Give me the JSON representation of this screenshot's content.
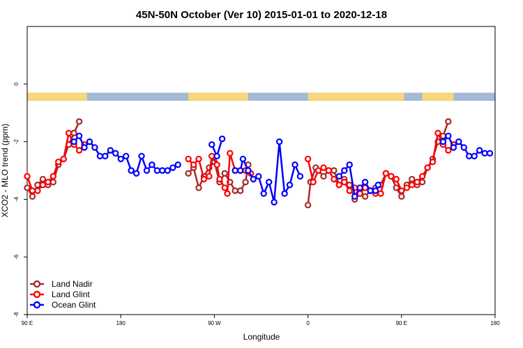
{
  "chart_data": {
    "type": "line",
    "title": "45N-50N October (Ver 10)   2015-01-01 to 2020-12-18",
    "xlabel": "Longitude",
    "ylabel": "XCO2 - MLO trend (ppm)",
    "xlim": [
      -90,
      270
    ],
    "ylim": [
      -8,
      2
    ],
    "x_ticks": [
      {
        "value": -90,
        "label": "90 E"
      },
      {
        "value": -18,
        "label": "180"
      },
      {
        "value": 54,
        "label": "90 W"
      },
      {
        "value": 126,
        "label": "0"
      },
      {
        "value": 198,
        "label": "90 E"
      },
      {
        "value": 270,
        "label": "180"
      }
    ],
    "y_ticks": [
      {
        "value": 0,
        "label": "0"
      },
      {
        "value": -2,
        "label": "-2"
      },
      {
        "value": -4,
        "label": "-4"
      },
      {
        "value": -6,
        "label": "-6"
      },
      {
        "value": -8,
        "label": "-8"
      }
    ],
    "grid": false,
    "legend_position": "bottom-left",
    "land_mask_band": {
      "y_top": -0.3,
      "y_bottom": -0.58,
      "land_color": "#f7d77a",
      "ocean_color": "#a4b8d8"
    },
    "series": [
      {
        "name": "Land Nadir",
        "color": "#a52a2a",
        "segments": [
          [
            [
              -90,
              -3.6
            ],
            [
              -86,
              -3.9
            ],
            [
              -82,
              -3.5
            ],
            [
              -78,
              -3.3
            ],
            [
              -74,
              -3.5
            ],
            [
              -70,
              -3.4
            ],
            [
              -66,
              -2.8
            ],
            [
              -62,
              -2.6
            ],
            [
              -58,
              -2.1
            ],
            [
              -54,
              -1.7
            ],
            [
              -50,
              -1.3
            ]
          ],
          [
            [
              34,
              -3.1
            ],
            [
              38,
              -2.9
            ],
            [
              42,
              -3.6
            ],
            [
              46,
              -3.2
            ],
            [
              50,
              -2.9
            ],
            [
              54,
              -2.7
            ],
            [
              58,
              -3.4
            ],
            [
              62,
              -3.1
            ],
            [
              66,
              -3.4
            ],
            [
              70,
              -3.7
            ],
            [
              74,
              -3.7
            ],
            [
              78,
              -3.4
            ],
            [
              80,
              -2.8
            ]
          ],
          [
            [
              126,
              -4.2
            ],
            [
              128,
              -3.4
            ],
            [
              132,
              -2.9
            ],
            [
              138,
              -3.2
            ],
            [
              142,
              -3.0
            ],
            [
              146,
              -3.0
            ],
            [
              150,
              -3.5
            ],
            [
              154,
              -3.3
            ],
            [
              158,
              -3.5
            ],
            [
              162,
              -4.0
            ],
            [
              166,
              -3.8
            ],
            [
              170,
              -3.9
            ],
            [
              174,
              -3.7
            ],
            [
              178,
              -3.6
            ],
            [
              182,
              -3.5
            ],
            [
              186,
              -3.1
            ],
            [
              190,
              -3.2
            ],
            [
              194,
              -3.6
            ],
            [
              198,
              -3.9
            ],
            [
              202,
              -3.5
            ],
            [
              206,
              -3.3
            ],
            [
              210,
              -3.5
            ],
            [
              214,
              -3.4
            ],
            [
              218,
              -2.9
            ],
            [
              222,
              -2.6
            ],
            [
              226,
              -2.0
            ],
            [
              230,
              -1.8
            ],
            [
              234,
              -1.3
            ]
          ]
        ]
      },
      {
        "name": "Land Glint",
        "color": "#ff0000",
        "segments": [
          [
            [
              -90,
              -3.2
            ],
            [
              -86,
              -3.7
            ],
            [
              -82,
              -3.7
            ],
            [
              -78,
              -3.5
            ],
            [
              -74,
              -3.4
            ],
            [
              -70,
              -3.2
            ],
            [
              -66,
              -2.7
            ],
            [
              -62,
              -2.6
            ],
            [
              -58,
              -1.7
            ],
            [
              -54,
              -2.1
            ],
            [
              -50,
              -2.3
            ],
            [
              -46,
              -2.1
            ]
          ],
          [
            [
              34,
              -2.6
            ],
            [
              38,
              -2.8
            ],
            [
              42,
              -2.6
            ],
            [
              46,
              -3.3
            ],
            [
              50,
              -3.2
            ],
            [
              52,
              -2.5
            ],
            [
              56,
              -2.8
            ],
            [
              58,
              -3.3
            ],
            [
              62,
              -3.6
            ],
            [
              64,
              -3.8
            ],
            [
              66,
              -2.4
            ],
            [
              70,
              -3.0
            ],
            [
              74,
              -3.0
            ],
            [
              78,
              -3.0
            ],
            [
              82,
              -3.1
            ]
          ],
          [
            [
              126,
              -2.6
            ],
            [
              130,
              -3.4
            ],
            [
              134,
              -3.0
            ],
            [
              138,
              -2.9
            ],
            [
              142,
              -3.0
            ],
            [
              146,
              -3.3
            ],
            [
              150,
              -3.5
            ],
            [
              154,
              -3.4
            ],
            [
              158,
              -3.7
            ],
            [
              162,
              -3.6
            ],
            [
              166,
              -3.8
            ],
            [
              170,
              -3.6
            ],
            [
              174,
              -3.7
            ],
            [
              178,
              -3.8
            ],
            [
              182,
              -3.8
            ],
            [
              186,
              -3.1
            ],
            [
              190,
              -3.2
            ],
            [
              194,
              -3.3
            ],
            [
              198,
              -3.7
            ],
            [
              202,
              -3.6
            ],
            [
              206,
              -3.5
            ],
            [
              210,
              -3.4
            ],
            [
              214,
              -3.2
            ],
            [
              218,
              -2.9
            ],
            [
              222,
              -2.7
            ],
            [
              226,
              -1.7
            ],
            [
              230,
              -2.1
            ],
            [
              234,
              -2.3
            ],
            [
              238,
              -2.1
            ]
          ]
        ]
      },
      {
        "name": "Ocean Glint",
        "color": "#0000ff",
        "segments": [
          [
            [
              -54,
              -2.0
            ],
            [
              -50,
              -1.8
            ],
            [
              -46,
              -2.2
            ],
            [
              -42,
              -2.0
            ],
            [
              -38,
              -2.2
            ],
            [
              -34,
              -2.5
            ],
            [
              -30,
              -2.5
            ],
            [
              -26,
              -2.3
            ],
            [
              -22,
              -2.4
            ],
            [
              -18,
              -2.6
            ],
            [
              -14,
              -2.5
            ],
            [
              -10,
              -3.0
            ],
            [
              -6,
              -3.1
            ],
            [
              -2,
              -2.5
            ],
            [
              2,
              -3.0
            ],
            [
              6,
              -2.8
            ],
            [
              10,
              -3.0
            ],
            [
              14,
              -3.0
            ],
            [
              18,
              -3.0
            ],
            [
              22,
              -2.9
            ],
            [
              26,
              -2.8
            ]
          ],
          [
            [
              52,
              -2.1
            ],
            [
              56,
              -2.5
            ],
            [
              60,
              -1.9
            ]
          ],
          [
            [
              70,
              -3.0
            ],
            [
              74,
              -3.0
            ],
            [
              76,
              -2.6
            ],
            [
              80,
              -3.0
            ],
            [
              84,
              -3.3
            ],
            [
              88,
              -3.2
            ],
            [
              92,
              -3.8
            ],
            [
              96,
              -3.4
            ],
            [
              100,
              -4.1
            ],
            [
              104,
              -2.0
            ],
            [
              108,
              -3.8
            ],
            [
              112,
              -3.5
            ],
            [
              116,
              -2.8
            ],
            [
              120,
              -3.2
            ]
          ],
          [
            [
              150,
              -3.2
            ],
            [
              154,
              -3.0
            ],
            [
              158,
              -2.8
            ],
            [
              162,
              -3.9
            ],
            [
              166,
              -3.6
            ],
            [
              170,
              -3.4
            ],
            [
              174,
              -3.7
            ],
            [
              178,
              -3.7
            ],
            [
              180,
              -3.5
            ]
          ],
          [
            [
              230,
              -2.0
            ],
            [
              234,
              -1.8
            ],
            [
              238,
              -2.2
            ],
            [
              242,
              -2.0
            ],
            [
              246,
              -2.2
            ],
            [
              250,
              -2.5
            ],
            [
              254,
              -2.5
            ],
            [
              258,
              -2.3
            ],
            [
              262,
              -2.4
            ],
            [
              266,
              -2.4
            ]
          ]
        ]
      }
    ]
  }
}
